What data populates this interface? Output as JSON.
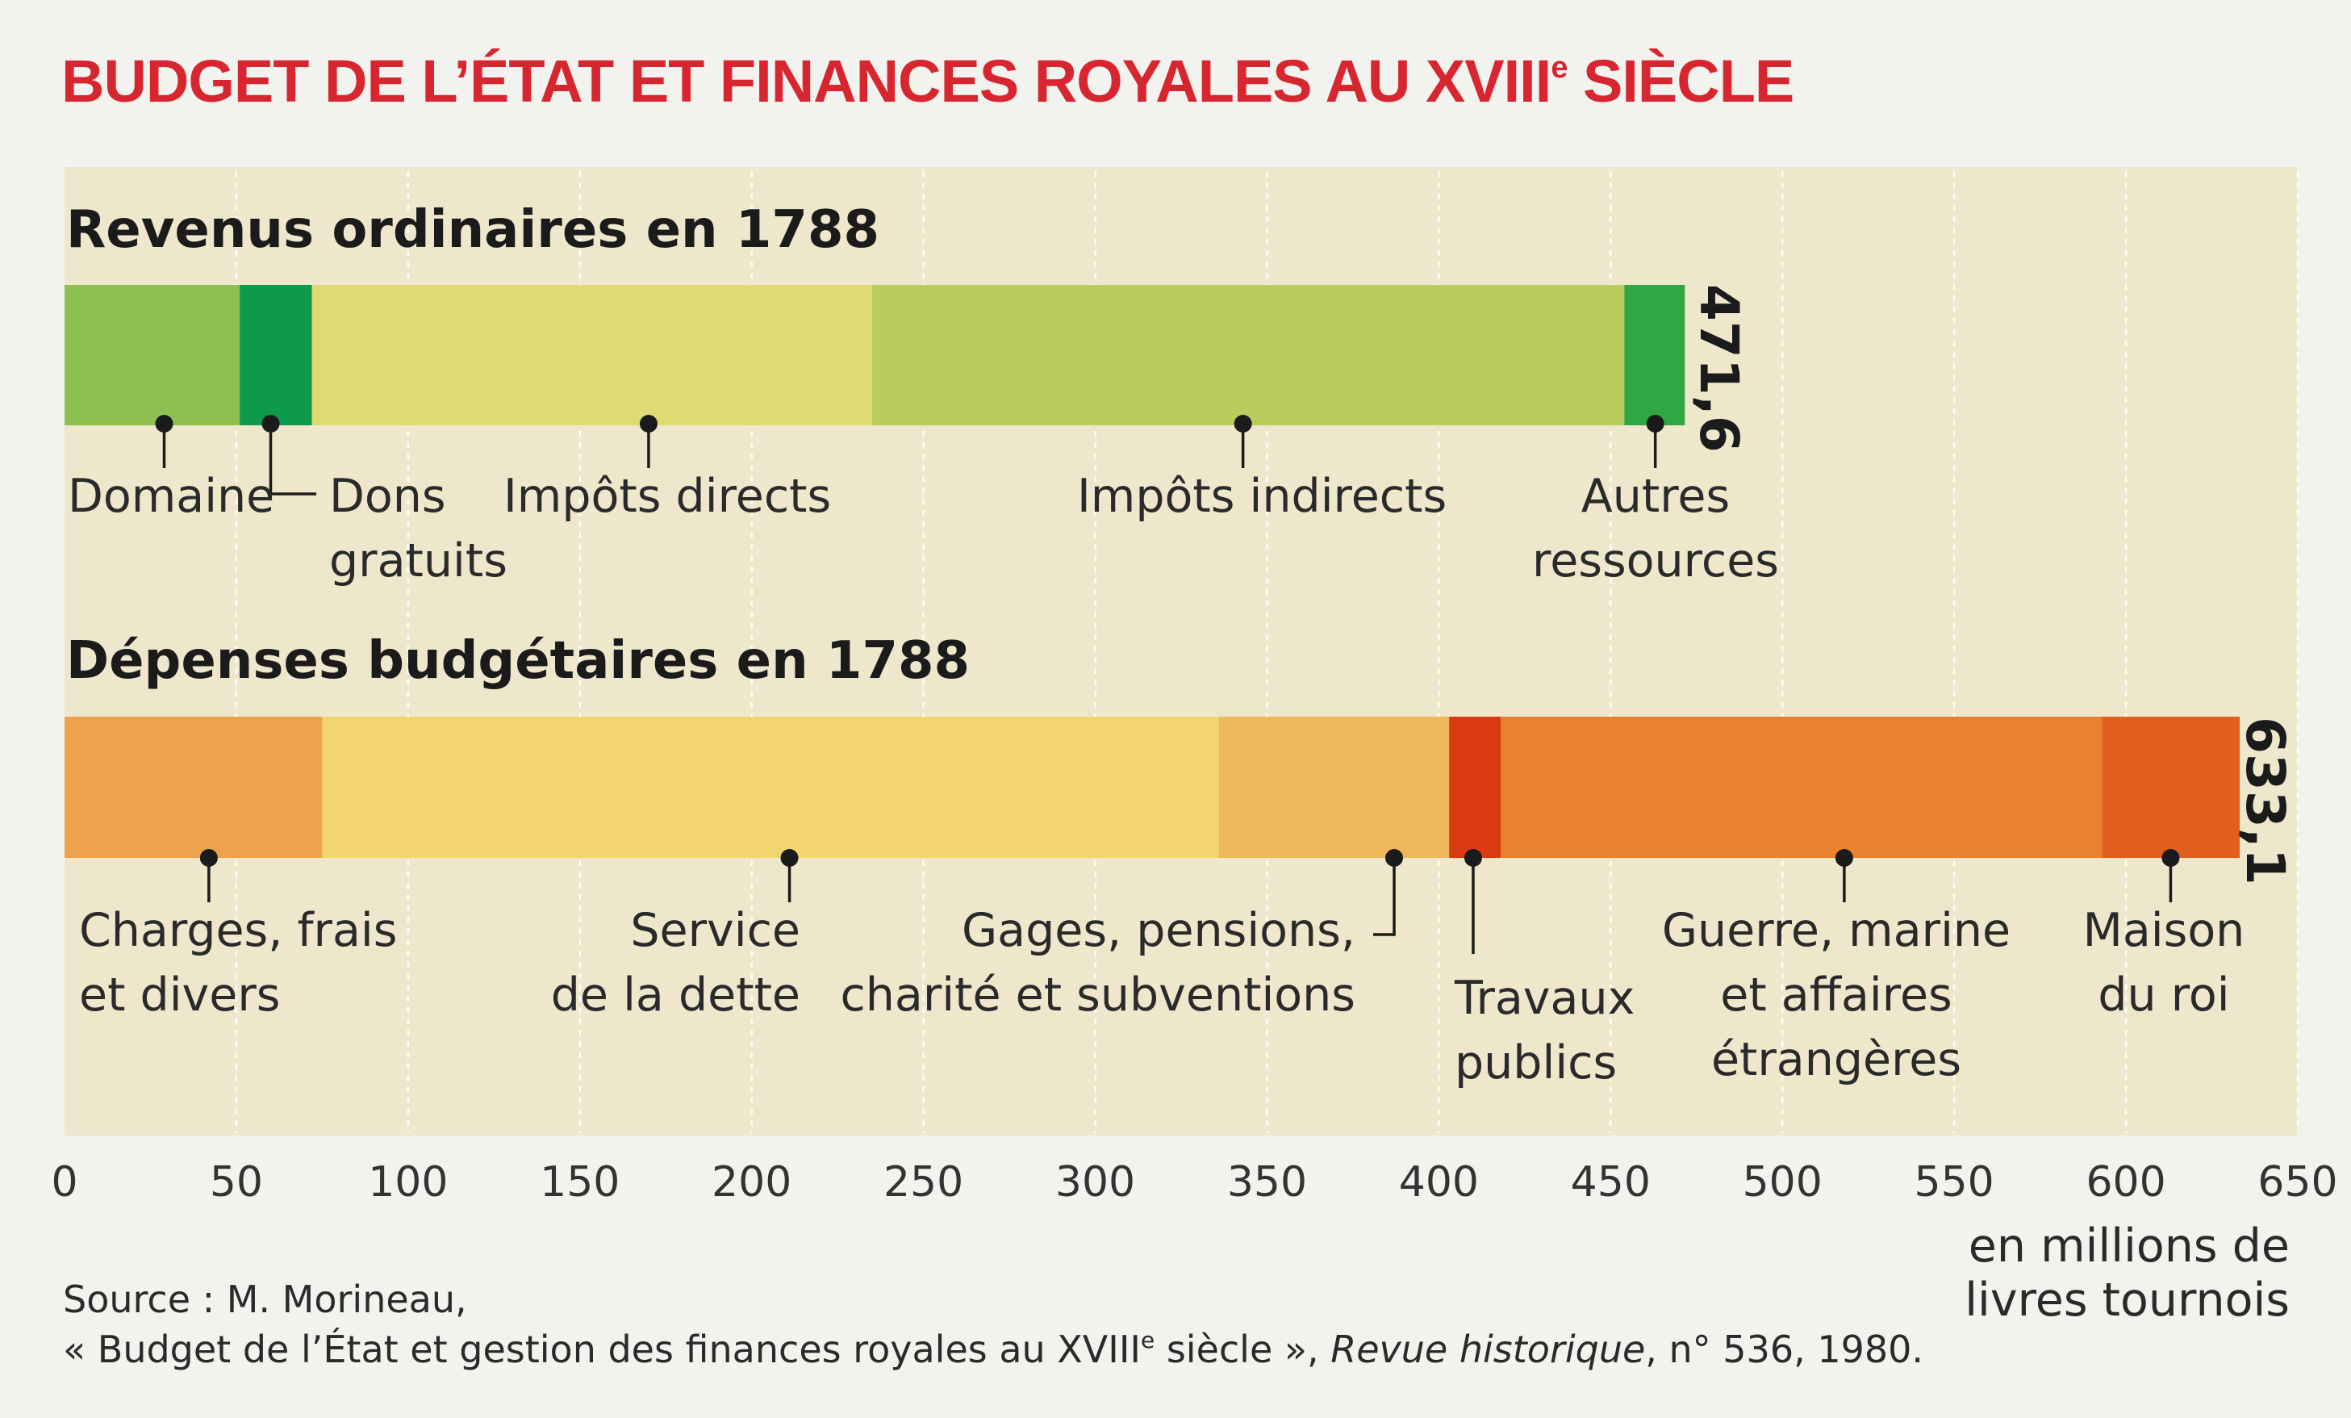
{
  "title": "BUDGET DE L’ÉTAT ET FINANCES ROYALES AU XVIII",
  "title_sup": "e",
  "title_tail": " SIÈCLE",
  "chart_data": [
    {
      "type": "bar",
      "orientation": "horizontal-stacked",
      "title": "Revenus ordinaires en 1788",
      "total_label": "471,6",
      "xlim": [
        0,
        650
      ],
      "series": [
        {
          "label": "Domaine",
          "value": 51,
          "color": "#8cc152"
        },
        {
          "label": "Dons gratuits",
          "value": 21,
          "color": "#0d9a4c"
        },
        {
          "label": "Impôts directs",
          "value": 163,
          "color": "#dfdb72"
        },
        {
          "label": "Impôts indirects",
          "value": 219,
          "color": "#b8cd5b"
        },
        {
          "label": "Autres ressources",
          "value": 17.6,
          "color": "#2ea843"
        }
      ]
    },
    {
      "type": "bar",
      "orientation": "horizontal-stacked",
      "title": "Dépenses budgétaires en 1788",
      "total_label": "633,1",
      "xlim": [
        0,
        650
      ],
      "series": [
        {
          "label": "Charges, frais et divers",
          "value": 75,
          "color": "#eda24b"
        },
        {
          "label": "Service de la dette",
          "value": 261,
          "color": "#f2d56e"
        },
        {
          "label": "Gages, pensions, charité et subventions",
          "value": 67,
          "color": "#efb85a"
        },
        {
          "label": "Travaux publics",
          "value": 15,
          "color": "#d93a12"
        },
        {
          "label": "Guerre, marine et affaires étrangères",
          "value": 175,
          "color": "#e88130"
        },
        {
          "label": "Maison du roi",
          "value": 40.1,
          "color": "#e15f1e"
        }
      ]
    }
  ],
  "axis": {
    "ticks": [
      "0",
      "50",
      "100",
      "150",
      "200",
      "250",
      "300",
      "350",
      "400",
      "450",
      "500",
      "550",
      "600",
      "650"
    ],
    "unit_line1": "en millions de",
    "unit_line2": "livres tournois"
  },
  "labels": {
    "rev": [
      {
        "lines": [
          "Domaine"
        ]
      },
      {
        "lines": [
          "Dons",
          "gratuits"
        ]
      },
      {
        "lines": [
          "Impôts directs"
        ]
      },
      {
        "lines": [
          "Impôts indirects"
        ]
      },
      {
        "lines": [
          "Autres",
          "ressources"
        ]
      }
    ],
    "dep": [
      {
        "lines": [
          "Charges, frais",
          "et divers"
        ]
      },
      {
        "lines": [
          "Service",
          "de la dette"
        ]
      },
      {
        "lines": [
          "Gages, pensions,",
          "charité et subventions"
        ]
      },
      {
        "lines": [
          "Travaux",
          "publics"
        ]
      },
      {
        "lines": [
          "Guerre, marine",
          "et affaires",
          "étrangères"
        ]
      },
      {
        "lines": [
          "Maison",
          "du roi"
        ]
      }
    ]
  },
  "source": {
    "line1": "Source : M. Morineau,",
    "line2_a": "« Budget de l’État et gestion des finances royales au XVIII",
    "line2_sup": "e",
    "line2_b": " siècle », ",
    "line2_italic": "Revue historique",
    "line2_c": ", n° 536, 1980."
  },
  "colors": {
    "title": "#d7262f",
    "panel": "#efe7cc",
    "background": "#f2f2ef"
  }
}
